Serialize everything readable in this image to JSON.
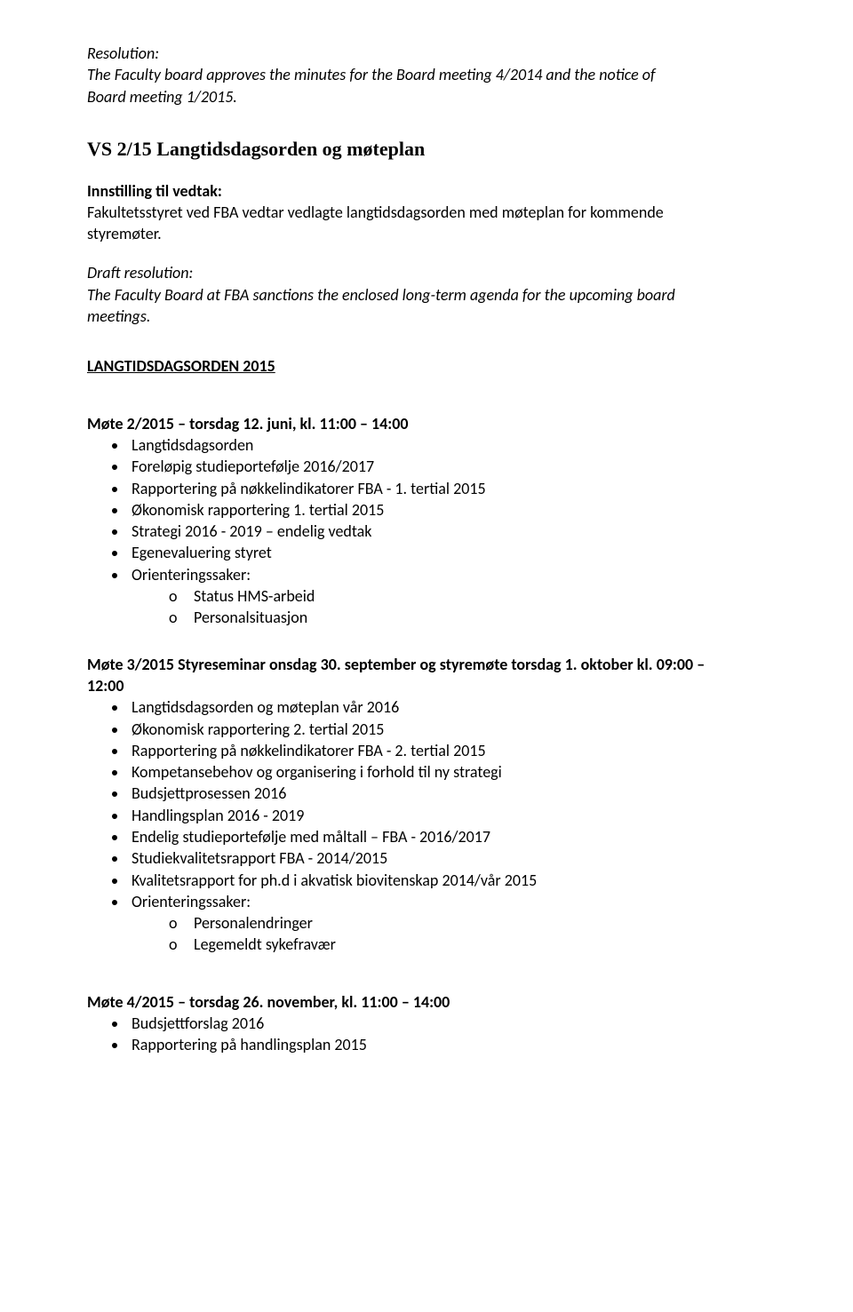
{
  "section1": {
    "heading": "Resolution:",
    "body_l1": "The Faculty board approves the minutes for the Board meeting 4/2014 and the notice of",
    "body_l2": "Board meeting 1/2015."
  },
  "section2": {
    "title": "VS 2/15 Langtidsdagsorden og møteplan",
    "sub_heading": "Innstilling til vedtak:",
    "body_l1": "Fakultetsstyret ved FBA vedtar vedlagte langtidsdagsorden med møteplan for kommende",
    "body_l2": "styremøter."
  },
  "section3": {
    "heading": "Draft resolution:",
    "body_l1": "The Faculty Board at FBA sanctions the enclosed long-term agenda for the upcoming board",
    "body_l2": "meetings."
  },
  "agenda_title": "LANGTIDSDAGSORDEN  2015",
  "meeting2": {
    "heading": "Møte 2/2015 – torsdag 12. juni, kl. 11:00 – 14:00",
    "items": [
      "Langtidsdagsorden",
      "Foreløpig studieportefølje 2016/2017",
      "Rapportering på nøkkelindikatorer FBA - 1. tertial 2015",
      "Økonomisk rapportering 1. tertial 2015",
      "Strategi 2016 - 2019 – endelig vedtak",
      "Egenevaluering styret",
      "Orienteringssaker:"
    ],
    "sub": [
      "Status HMS-arbeid",
      "Personalsituasjon"
    ]
  },
  "meeting3": {
    "heading_l1": "Møte 3/2015 Styreseminar onsdag 30. september og styremøte torsdag 1. oktober kl. 09:00 –",
    "heading_l2": "12:00",
    "items": [
      "Langtidsdagsorden og møteplan vår 2016",
      "Økonomisk rapportering 2. tertial 2015",
      "Rapportering på nøkkelindikatorer FBA - 2. tertial 2015",
      "Kompetansebehov og organisering i forhold til ny strategi",
      "Budsjettprosessen 2016",
      "Handlingsplan 2016 - 2019",
      "Endelig studieportefølje med måltall – FBA - 2016/2017",
      "Studiekvalitetsrapport FBA - 2014/2015",
      "Kvalitetsrapport for ph.d i akvatisk biovitenskap 2014/vår 2015",
      "Orienteringssaker:"
    ],
    "sub": [
      "Personalendringer",
      "Legemeldt sykefravær"
    ]
  },
  "meeting4": {
    "heading": "Møte 4/2015 – torsdag 26. november, kl. 11:00 – 14:00",
    "items": [
      "Budsjettforslag 2016",
      "Rapportering på handlingsplan 2015"
    ]
  },
  "sub_symbol": "o"
}
